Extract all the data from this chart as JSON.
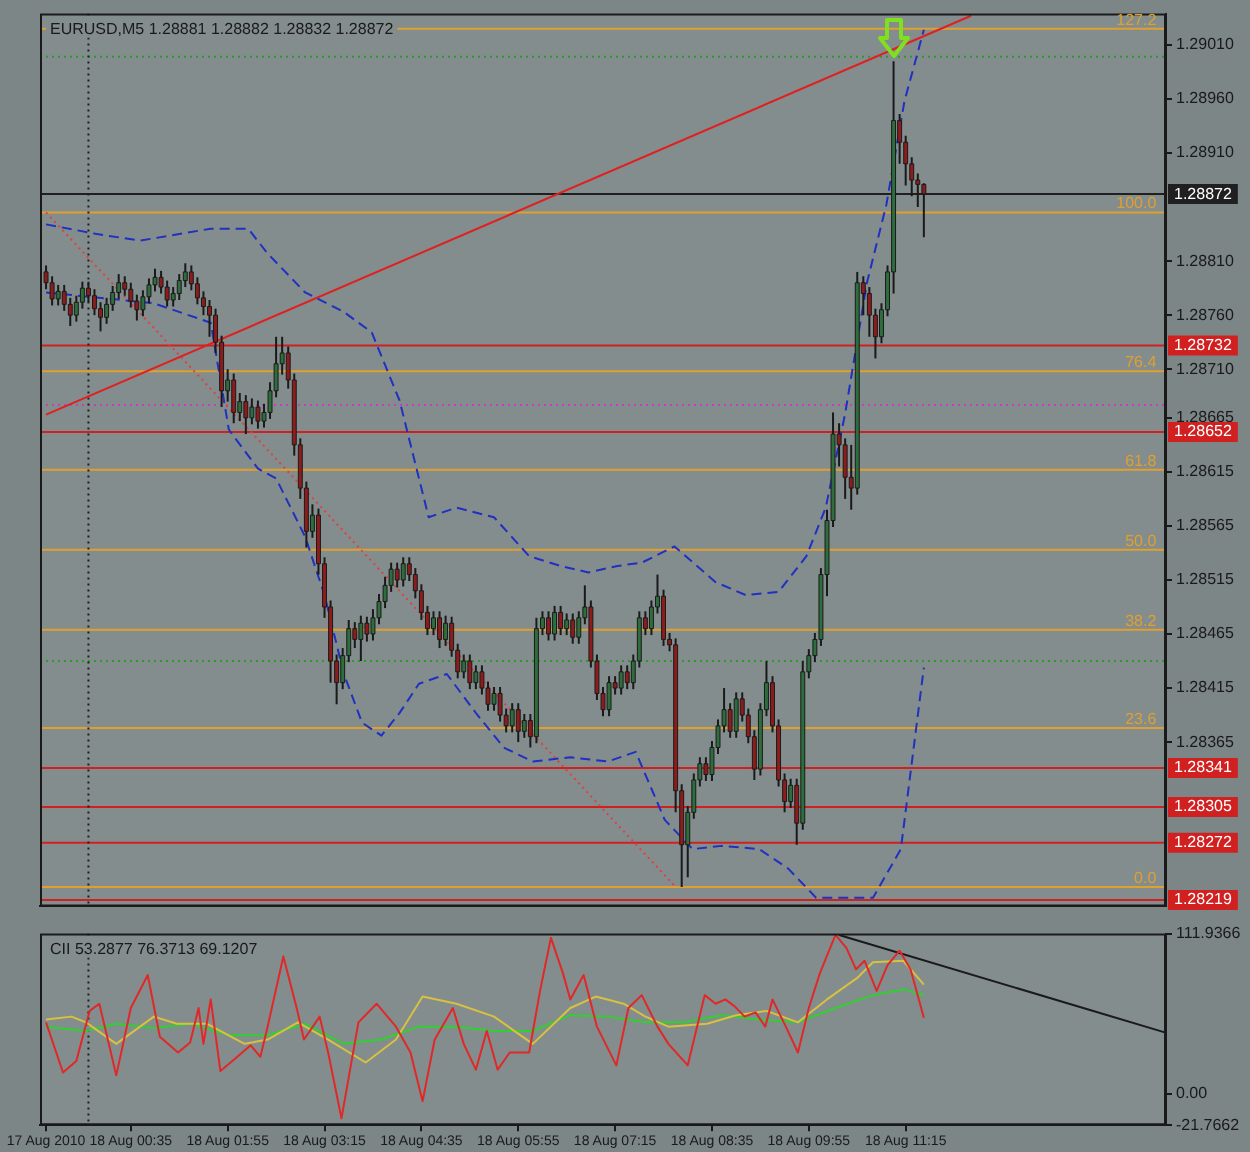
{
  "chart_data": [
    {
      "type": "candlestick",
      "title": "EURUSD,M5 1.28881 1.28882 1.28832 1.28872",
      "x": [
        "2010-08-17T23:25",
        "2010-08-17T23:30",
        "2010-08-17T23:35",
        "2010-08-17T23:40",
        "2010-08-17T23:45",
        "2010-08-17T23:50",
        "2010-08-17T23:55",
        "2010-08-18T00:00",
        "2010-08-18T00:05",
        "2010-08-18T00:10",
        "2010-08-18T00:15",
        "2010-08-18T00:20",
        "2010-08-18T00:25",
        "2010-08-18T00:30",
        "2010-08-18T00:35",
        "2010-08-18T00:40",
        "2010-08-18T00:45",
        "2010-08-18T00:50",
        "2010-08-18T00:55",
        "2010-08-18T01:00",
        "2010-08-18T01:05",
        "2010-08-18T01:10",
        "2010-08-18T01:15",
        "2010-08-18T01:20",
        "2010-08-18T01:25",
        "2010-08-18T01:30",
        "2010-08-18T01:35",
        "2010-08-18T01:40",
        "2010-08-18T01:45",
        "2010-08-18T01:50",
        "2010-08-18T01:55",
        "2010-08-18T02:00",
        "2010-08-18T02:05",
        "2010-08-18T02:10",
        "2010-08-18T02:15",
        "2010-08-18T02:20",
        "2010-08-18T02:25",
        "2010-08-18T02:30",
        "2010-08-18T02:35",
        "2010-08-18T02:40",
        "2010-08-18T02:45",
        "2010-08-18T02:50",
        "2010-08-18T02:55",
        "2010-08-18T03:00",
        "2010-08-18T03:05",
        "2010-08-18T03:10",
        "2010-08-18T03:15",
        "2010-08-18T03:20",
        "2010-08-18T03:25",
        "2010-08-18T03:30",
        "2010-08-18T03:35",
        "2010-08-18T03:40",
        "2010-08-18T03:45",
        "2010-08-18T03:50",
        "2010-08-18T03:55",
        "2010-08-18T04:00",
        "2010-08-18T04:05",
        "2010-08-18T04:10",
        "2010-08-18T04:15",
        "2010-08-18T04:20",
        "2010-08-18T04:25",
        "2010-08-18T04:30",
        "2010-08-18T04:35",
        "2010-08-18T04:40",
        "2010-08-18T04:45",
        "2010-08-18T04:50",
        "2010-08-18T04:55",
        "2010-08-18T05:00",
        "2010-08-18T05:05",
        "2010-08-18T05:10",
        "2010-08-18T05:15",
        "2010-08-18T05:20",
        "2010-08-18T05:25",
        "2010-08-18T05:30",
        "2010-08-18T05:35",
        "2010-08-18T05:40",
        "2010-08-18T05:45",
        "2010-08-18T05:50",
        "2010-08-18T05:55",
        "2010-08-18T06:00",
        "2010-08-18T06:05",
        "2010-08-18T06:10",
        "2010-08-18T06:15",
        "2010-08-18T06:20",
        "2010-08-18T06:25",
        "2010-08-18T06:30",
        "2010-08-18T06:35",
        "2010-08-18T06:40",
        "2010-08-18T06:45",
        "2010-08-18T06:50",
        "2010-08-18T06:55",
        "2010-08-18T07:00",
        "2010-08-18T07:05",
        "2010-08-18T07:10",
        "2010-08-18T07:15",
        "2010-08-18T07:20",
        "2010-08-18T07:25",
        "2010-08-18T07:30",
        "2010-08-18T07:35",
        "2010-08-18T07:40",
        "2010-08-18T07:45",
        "2010-08-18T07:50",
        "2010-08-18T07:55",
        "2010-08-18T08:00",
        "2010-08-18T08:05",
        "2010-08-18T08:10",
        "2010-08-18T08:15",
        "2010-08-18T08:20",
        "2010-08-18T08:25",
        "2010-08-18T08:30",
        "2010-08-18T08:35",
        "2010-08-18T08:40",
        "2010-08-18T08:45",
        "2010-08-18T08:50",
        "2010-08-18T08:55",
        "2010-08-18T09:00",
        "2010-08-18T09:05",
        "2010-08-18T09:10",
        "2010-08-18T09:15",
        "2010-08-18T09:20",
        "2010-08-18T09:25",
        "2010-08-18T09:30",
        "2010-08-18T09:35",
        "2010-08-18T09:40",
        "2010-08-18T09:45",
        "2010-08-18T09:50",
        "2010-08-18T09:55",
        "2010-08-18T10:00",
        "2010-08-18T10:05",
        "2010-08-18T10:10",
        "2010-08-18T10:15",
        "2010-08-18T10:20",
        "2010-08-18T10:25",
        "2010-08-18T10:30",
        "2010-08-18T10:35",
        "2010-08-18T10:40",
        "2010-08-18T10:45",
        "2010-08-18T10:50",
        "2010-08-18T10:55",
        "2010-08-18T11:00",
        "2010-08-18T11:05",
        "2010-08-18T11:10",
        "2010-08-18T11:15",
        "2010-08-18T11:20",
        "2010-08-18T11:25",
        "2010-08-18T11:30"
      ],
      "ohlc": [
        [
          1.288,
          1.28806,
          1.28784,
          1.2879
        ],
        [
          1.2879,
          1.28796,
          1.28769,
          1.28775
        ],
        [
          1.28775,
          1.28788,
          1.28769,
          1.28782
        ],
        [
          1.28782,
          1.28788,
          1.28764,
          1.2877
        ],
        [
          1.2877,
          1.28776,
          1.2875,
          1.2876
        ],
        [
          1.2876,
          1.28778,
          1.28754,
          1.28772
        ],
        [
          1.28772,
          1.28791,
          1.28766,
          1.28785
        ],
        [
          1.28785,
          1.28791,
          1.28772,
          1.28778
        ],
        [
          1.28778,
          1.28784,
          1.2876,
          1.28766
        ],
        [
          1.28766,
          1.28772,
          1.28745,
          1.28758
        ],
        [
          1.28758,
          1.28776,
          1.28752,
          1.2877
        ],
        [
          1.2877,
          1.28787,
          1.28764,
          1.28781
        ],
        [
          1.28781,
          1.28798,
          1.28775,
          1.2879
        ],
        [
          1.2879,
          1.28796,
          1.28778,
          1.28784
        ],
        [
          1.28784,
          1.2879,
          1.28767,
          1.28773
        ],
        [
          1.28773,
          1.28779,
          1.28755,
          1.28765
        ],
        [
          1.28765,
          1.28783,
          1.28759,
          1.28777
        ],
        [
          1.28777,
          1.28794,
          1.28771,
          1.28788
        ],
        [
          1.28788,
          1.28803,
          1.28782,
          1.28795
        ],
        [
          1.28795,
          1.28801,
          1.2878,
          1.28786
        ],
        [
          1.28786,
          1.28792,
          1.28768,
          1.28774
        ],
        [
          1.28774,
          1.28786,
          1.28768,
          1.2878
        ],
        [
          1.2878,
          1.28798,
          1.28774,
          1.28792
        ],
        [
          1.28792,
          1.28808,
          1.28786,
          1.288
        ],
        [
          1.288,
          1.28806,
          1.28783,
          1.28789
        ],
        [
          1.28789,
          1.28795,
          1.2877,
          1.28776
        ],
        [
          1.28776,
          1.28782,
          1.2876,
          1.28768
        ],
        [
          1.28768,
          1.28774,
          1.2874,
          1.2876
        ],
        [
          1.2876,
          1.28766,
          1.28725,
          1.28735
        ],
        [
          1.28735,
          1.28741,
          1.28675,
          1.2869
        ],
        [
          1.2869,
          1.2871,
          1.2868,
          1.287
        ],
        [
          1.287,
          1.28706,
          1.2866,
          1.2867
        ],
        [
          1.2867,
          1.28688,
          1.28662,
          1.2868
        ],
        [
          1.2868,
          1.28686,
          1.2865,
          1.28665
        ],
        [
          1.28665,
          1.28683,
          1.28659,
          1.28675
        ],
        [
          1.28675,
          1.28681,
          1.28655,
          1.28662
        ],
        [
          1.28662,
          1.28678,
          1.28656,
          1.2867
        ],
        [
          1.2867,
          1.28698,
          1.28664,
          1.2869
        ],
        [
          1.2869,
          1.2874,
          1.28684,
          1.28715
        ],
        [
          1.28715,
          1.2874,
          1.28705,
          1.28725
        ],
        [
          1.28725,
          1.28731,
          1.28692,
          1.287
        ],
        [
          1.287,
          1.28706,
          1.2863,
          1.2864
        ],
        [
          1.2864,
          1.28646,
          1.2859,
          1.286
        ],
        [
          1.286,
          1.28606,
          1.28545,
          1.2856
        ],
        [
          1.2856,
          1.28585,
          1.28554,
          1.28575
        ],
        [
          1.28575,
          1.28581,
          1.2852,
          1.2853
        ],
        [
          1.2853,
          1.28536,
          1.2848,
          1.2849
        ],
        [
          1.2849,
          1.28496,
          1.2842,
          1.2844
        ],
        [
          1.2844,
          1.28446,
          1.284,
          1.2842
        ],
        [
          1.2842,
          1.28452,
          1.28414,
          1.28445
        ],
        [
          1.28445,
          1.28478,
          1.28439,
          1.2847
        ],
        [
          1.2847,
          1.28476,
          1.28452,
          1.2846
        ],
        [
          1.2846,
          1.28482,
          1.2844,
          1.28475
        ],
        [
          1.28475,
          1.28481,
          1.28458,
          1.28465
        ],
        [
          1.28465,
          1.28488,
          1.28459,
          1.2848
        ],
        [
          1.2848,
          1.28502,
          1.28474,
          1.28495
        ],
        [
          1.28495,
          1.28518,
          1.28489,
          1.2851
        ],
        [
          1.2851,
          1.28531,
          1.28504,
          1.28525
        ],
        [
          1.28525,
          1.28531,
          1.28508,
          1.28515
        ],
        [
          1.28515,
          1.28536,
          1.28509,
          1.2853
        ],
        [
          1.2853,
          1.28536,
          1.28514,
          1.2852
        ],
        [
          1.2852,
          1.28526,
          1.28498,
          1.28505
        ],
        [
          1.28505,
          1.28511,
          1.28478,
          1.28485
        ],
        [
          1.28485,
          1.28491,
          1.28464,
          1.2847
        ],
        [
          1.2847,
          1.28486,
          1.28464,
          1.2848
        ],
        [
          1.2848,
          1.28486,
          1.28452,
          1.2846
        ],
        [
          1.2846,
          1.28482,
          1.28454,
          1.28475
        ],
        [
          1.28475,
          1.28481,
          1.28444,
          1.2845
        ],
        [
          1.2845,
          1.28456,
          1.28424,
          1.2843
        ],
        [
          1.2843,
          1.28446,
          1.28424,
          1.2844
        ],
        [
          1.2844,
          1.28446,
          1.28414,
          1.2842
        ],
        [
          1.2842,
          1.28436,
          1.28414,
          1.2843
        ],
        [
          1.2843,
          1.28436,
          1.28409,
          1.28415
        ],
        [
          1.28415,
          1.28421,
          1.28394,
          1.284
        ],
        [
          1.284,
          1.28416,
          1.28394,
          1.2841
        ],
        [
          1.2841,
          1.28416,
          1.28384,
          1.2839
        ],
        [
          1.2839,
          1.28396,
          1.28374,
          1.2838
        ],
        [
          1.2838,
          1.28401,
          1.28374,
          1.28395
        ],
        [
          1.28395,
          1.28401,
          1.28365,
          1.28375
        ],
        [
          1.28375,
          1.28391,
          1.28369,
          1.28385
        ],
        [
          1.28385,
          1.28391,
          1.2836,
          1.2837
        ],
        [
          1.2837,
          1.2848,
          1.28364,
          1.2847
        ],
        [
          1.2847,
          1.28486,
          1.28464,
          1.2848
        ],
        [
          1.2848,
          1.28486,
          1.28459,
          1.28465
        ],
        [
          1.28465,
          1.28491,
          1.28459,
          1.28485
        ],
        [
          1.28485,
          1.28491,
          1.28464,
          1.2847
        ],
        [
          1.2847,
          1.28484,
          1.28464,
          1.28478
        ],
        [
          1.28478,
          1.28484,
          1.28456,
          1.28462
        ],
        [
          1.28462,
          1.28486,
          1.28456,
          1.2848
        ],
        [
          1.2848,
          1.2851,
          1.28474,
          1.2849
        ],
        [
          1.2849,
          1.28496,
          1.28434,
          1.2844
        ],
        [
          1.2844,
          1.28446,
          1.28404,
          1.2841
        ],
        [
          1.2841,
          1.28416,
          1.28389,
          1.28395
        ],
        [
          1.28395,
          1.28426,
          1.28389,
          1.2842
        ],
        [
          1.2842,
          1.28426,
          1.28409,
          1.28415
        ],
        [
          1.28415,
          1.28436,
          1.28409,
          1.2843
        ],
        [
          1.2843,
          1.28436,
          1.28414,
          1.2842
        ],
        [
          1.2842,
          1.28446,
          1.28414,
          1.2844
        ],
        [
          1.2844,
          1.28486,
          1.28434,
          1.2848
        ],
        [
          1.2848,
          1.28486,
          1.28464,
          1.2847
        ],
        [
          1.2847,
          1.28496,
          1.28464,
          1.2849
        ],
        [
          1.2849,
          1.2852,
          1.28484,
          1.285
        ],
        [
          1.285,
          1.28506,
          1.28454,
          1.2846
        ],
        [
          1.2846,
          1.28466,
          1.28449,
          1.28455
        ],
        [
          1.28455,
          1.28461,
          1.283,
          1.2832
        ],
        [
          1.2832,
          1.28326,
          1.28231,
          1.2827
        ],
        [
          1.2827,
          1.28306,
          1.2824,
          1.283
        ],
        [
          1.283,
          1.28336,
          1.28294,
          1.2833
        ],
        [
          1.2833,
          1.28351,
          1.28324,
          1.28345
        ],
        [
          1.28345,
          1.28351,
          1.28329,
          1.28335
        ],
        [
          1.28335,
          1.28366,
          1.28329,
          1.2836
        ],
        [
          1.2836,
          1.28386,
          1.28354,
          1.2838
        ],
        [
          1.2838,
          1.28415,
          1.28374,
          1.28395
        ],
        [
          1.28395,
          1.28401,
          1.28369,
          1.28375
        ],
        [
          1.28375,
          1.28411,
          1.28369,
          1.28405
        ],
        [
          1.28405,
          1.28411,
          1.28384,
          1.2839
        ],
        [
          1.2839,
          1.28396,
          1.28364,
          1.2837
        ],
        [
          1.2837,
          1.28376,
          1.2833,
          1.2834
        ],
        [
          1.2834,
          1.28401,
          1.28334,
          1.28395
        ],
        [
          1.28395,
          1.2844,
          1.28389,
          1.2842
        ],
        [
          1.2842,
          1.28426,
          1.28374,
          1.2838
        ],
        [
          1.2838,
          1.28386,
          1.28324,
          1.2833
        ],
        [
          1.2833,
          1.28336,
          1.283,
          1.2831
        ],
        [
          1.2831,
          1.28331,
          1.28304,
          1.28325
        ],
        [
          1.28325,
          1.28331,
          1.2827,
          1.2829
        ],
        [
          1.2829,
          1.2844,
          1.28284,
          1.2843
        ],
        [
          1.2843,
          1.28451,
          1.28424,
          1.28445
        ],
        [
          1.28445,
          1.28466,
          1.28439,
          1.2846
        ],
        [
          1.2846,
          1.28526,
          1.28454,
          1.2852
        ],
        [
          1.2852,
          1.2858,
          1.285,
          1.2857
        ],
        [
          1.2857,
          1.2867,
          1.28564,
          1.2865
        ],
        [
          1.2865,
          1.2866,
          1.2862,
          1.2864
        ],
        [
          1.2864,
          1.28646,
          1.2859,
          1.2861
        ],
        [
          1.2861,
          1.2864,
          1.2858,
          1.286
        ],
        [
          1.286,
          1.288,
          1.28594,
          1.2879
        ],
        [
          1.2879,
          1.28796,
          1.2876,
          1.2878
        ],
        [
          1.2878,
          1.28786,
          1.2874,
          1.2876
        ],
        [
          1.2876,
          1.28766,
          1.2872,
          1.2874
        ],
        [
          1.2874,
          1.28771,
          1.28734,
          1.28765
        ],
        [
          1.28765,
          1.28806,
          1.28759,
          1.288
        ],
        [
          1.288,
          1.28995,
          1.2878,
          1.2894
        ],
        [
          1.2894,
          1.28946,
          1.289,
          1.2892
        ],
        [
          1.2892,
          1.28926,
          1.2888,
          1.289
        ],
        [
          1.289,
          1.28906,
          1.2887,
          1.28885
        ],
        [
          1.28885,
          1.28891,
          1.2886,
          1.28881
        ],
        [
          1.28881,
          1.28882,
          1.28832,
          1.28872
        ]
      ],
      "series": [
        {
          "type": "line",
          "color": "#2030c0",
          "line_style": "dashed",
          "x": [
            "2010-08-17T23:25",
            "2010-08-18T00:07",
            "2010-08-18T00:43",
            "2010-08-18T01:41",
            "2010-08-18T02:12",
            "2010-08-18T02:28",
            "2010-08-18T02:59",
            "2010-08-18T03:31",
            "2010-08-18T03:54",
            "2010-08-18T04:17",
            "2010-08-18T04:41",
            "2010-08-18T05:04",
            "2010-08-18T05:35",
            "2010-08-18T06:04",
            "2010-08-18T06:30",
            "2010-08-18T06:53",
            "2010-08-18T07:17",
            "2010-08-18T07:37",
            "2010-08-18T08:04",
            "2010-08-18T08:38",
            "2010-08-18T09:03",
            "2010-08-18T09:30",
            "2010-08-18T09:53",
            "2010-08-18T10:09",
            "2010-08-18T10:25",
            "2010-08-18T10:43",
            "2010-08-18T10:59",
            "2010-08-18T11:14",
            "2010-08-18T11:30"
          ],
          "values": [
            1.28844,
            1.28835,
            1.28829,
            1.2884,
            1.2884,
            1.28817,
            1.28781,
            1.28763,
            1.28744,
            1.28681,
            1.28573,
            1.28582,
            1.28573,
            1.28537,
            1.28528,
            1.28522,
            1.28528,
            1.28531,
            1.28546,
            1.28513,
            1.28501,
            1.28504,
            1.28537,
            1.28582,
            1.28669,
            1.2879,
            1.28862,
            1.28958,
            1.29024
          ]
        },
        {
          "type": "line",
          "color": "#2030c0",
          "line_style": "dashed",
          "x": [
            "2010-08-17T23:25",
            "2010-08-18T00:54",
            "2010-08-18T01:41",
            "2010-08-18T01:56",
            "2010-08-18T02:20",
            "2010-08-18T02:35",
            "2010-08-18T02:59",
            "2010-08-18T03:15",
            "2010-08-18T03:31",
            "2010-08-18T03:46",
            "2010-08-18T04:02",
            "2010-08-18T04:17",
            "2010-08-18T04:33",
            "2010-08-18T04:56",
            "2010-08-18T05:20",
            "2010-08-18T05:43",
            "2010-08-18T06:07",
            "2010-08-18T06:38",
            "2010-08-18T07:09",
            "2010-08-18T07:32",
            "2010-08-18T07:56",
            "2010-08-18T08:19",
            "2010-08-18T08:43",
            "2010-08-18T09:14",
            "2010-08-18T09:38",
            "2010-08-18T10:01",
            "2010-08-18T10:17",
            "2010-08-18T10:48",
            "2010-08-18T11:11",
            "2010-08-18T11:30"
          ],
          "values": [
            1.28781,
            1.28771,
            1.28753,
            1.28654,
            1.28618,
            1.28609,
            1.28555,
            1.28501,
            1.28428,
            1.28383,
            1.28371,
            1.28392,
            1.28419,
            1.28428,
            1.28392,
            1.2836,
            1.28347,
            1.28351,
            1.28347,
            1.28356,
            1.28293,
            1.28266,
            1.28269,
            1.28266,
            1.28248,
            1.28221,
            1.28221,
            1.28221,
            1.28266,
            1.28434
          ]
        },
        {
          "type": "line",
          "color": "#e02020",
          "line_style": "solid",
          "x": [
            "2010-08-17T23:25",
            "2010-08-18T12:09"
          ],
          "values": [
            1.28668,
            1.29037
          ]
        },
        {
          "type": "line",
          "color": "#e04040",
          "line_style": "dotted",
          "x": [
            "2010-08-17T23:25",
            "2010-08-18T08:05"
          ],
          "values": [
            1.28855,
            1.28231
          ]
        }
      ],
      "ylim": [
        1.28213,
        1.29039
      ],
      "yticks": [
        {
          "value": 1.2901,
          "label": "1.29010"
        },
        {
          "value": 1.2896,
          "label": "1.28960"
        },
        {
          "value": 1.2891,
          "label": "1.28910"
        },
        {
          "value": 1.2881,
          "label": "1.28810"
        },
        {
          "value": 1.2876,
          "label": "1.28760"
        },
        {
          "value": 1.2871,
          "label": "1.28710"
        },
        {
          "value": 1.28665,
          "label": "1.28665"
        },
        {
          "value": 1.28615,
          "label": "1.28615"
        },
        {
          "value": 1.28565,
          "label": "1.28565"
        },
        {
          "value": 1.28515,
          "label": "1.28515"
        },
        {
          "value": 1.28465,
          "label": "1.28465"
        },
        {
          "value": 1.28415,
          "label": "1.28415"
        },
        {
          "value": 1.28365,
          "label": "1.28365"
        }
      ],
      "xlim": [
        "2010-08-17T23:20",
        "2010-08-18T14:50"
      ],
      "tick_labels": "y",
      "ref_lines": [
        {
          "axis": "y",
          "value": 1.29025,
          "color": "#e0a030"
        },
        {
          "axis": "y",
          "value": 1.28855,
          "color": "#e0a030"
        },
        {
          "axis": "y",
          "value": 1.28708,
          "color": "#e0a030"
        },
        {
          "axis": "y",
          "value": 1.28617,
          "color": "#e0a030"
        },
        {
          "axis": "y",
          "value": 1.28543,
          "color": "#e0a030"
        },
        {
          "axis": "y",
          "value": 1.28469,
          "color": "#e0a030"
        },
        {
          "axis": "y",
          "value": 1.28378,
          "color": "#e0a030"
        },
        {
          "axis": "y",
          "value": 1.28231,
          "color": "#e0a030"
        },
        {
          "axis": "y",
          "value": 1.28999,
          "color": "#2a9a2a",
          "line_style": "dotted"
        },
        {
          "axis": "y",
          "value": 1.2844,
          "color": "#2a9a2a",
          "line_style": "dotted"
        },
        {
          "axis": "y",
          "value": 1.28677,
          "color": "#c040c0",
          "line_style": "dotted"
        },
        {
          "axis": "y",
          "value": 1.28872,
          "label": "1.28872",
          "color": "#202020"
        },
        {
          "axis": "y",
          "value": 1.28732,
          "label": "1.28732",
          "color": "#d02020"
        },
        {
          "axis": "y",
          "value": 1.28652,
          "label": "1.28652",
          "color": "#d02020"
        },
        {
          "axis": "y",
          "value": 1.28341,
          "label": "1.28341",
          "color": "#d02020"
        },
        {
          "axis": "y",
          "value": 1.28305,
          "label": "1.28305",
          "color": "#d02020"
        },
        {
          "axis": "y",
          "value": 1.28272,
          "label": "1.28272",
          "color": "#d02020"
        },
        {
          "axis": "y",
          "value": 1.28219,
          "label": "1.28219",
          "color": "#d02020"
        },
        {
          "axis": "x",
          "value": "2010-08-18T00:00",
          "color": "#202020",
          "line_style": "dotted"
        }
      ],
      "annotations": [
        {
          "text": "127.2",
          "x": "2010-08-18T14:42",
          "y": 1.29025
        },
        {
          "text": "100.0",
          "x": "2010-08-18T14:42",
          "y": 1.28855
        },
        {
          "text": "76.4",
          "x": "2010-08-18T14:42",
          "y": 1.28708
        },
        {
          "text": "61.8",
          "x": "2010-08-18T14:42",
          "y": 1.28617
        },
        {
          "text": "50.0",
          "x": "2010-08-18T14:42",
          "y": 1.28543
        },
        {
          "text": "38.2",
          "x": "2010-08-18T14:42",
          "y": 1.28469
        },
        {
          "text": "23.6",
          "x": "2010-08-18T14:42",
          "y": 1.28378
        },
        {
          "text": "0.0",
          "x": "2010-08-18T14:42",
          "y": 1.28231
        }
      ]
    },
    {
      "type": "line",
      "title": "CII 53.2877 76.3713 69.1207",
      "series": [
        {
          "color": "#e02828",
          "x": [
            "2010-08-17T23:25",
            "2010-08-17T23:39",
            "2010-08-17T23:50",
            "2010-08-18T00:01",
            "2010-08-18T00:09",
            "2010-08-18T00:23",
            "2010-08-18T00:35",
            "2010-08-18T00:49",
            "2010-08-18T00:59",
            "2010-08-18T01:14",
            "2010-08-18T01:24",
            "2010-08-18T01:31",
            "2010-08-18T01:35",
            "2010-08-18T01:41",
            "2010-08-18T01:49",
            "2010-08-18T02:03",
            "2010-08-18T02:14",
            "2010-08-18T02:22",
            "2010-08-18T02:28",
            "2010-08-18T02:41",
            "2010-08-18T02:52",
            "2010-08-18T02:58",
            "2010-08-18T03:11",
            "2010-08-18T03:18",
            "2010-08-18T03:29",
            "2010-08-18T03:43",
            "2010-08-18T03:58",
            "2010-08-18T04:14",
            "2010-08-18T04:26",
            "2010-08-18T04:36",
            "2010-08-18T04:46",
            "2010-08-18T05:01",
            "2010-08-18T05:10",
            "2010-08-18T05:20",
            "2010-08-18T05:29",
            "2010-08-18T05:38",
            "2010-08-18T05:48",
            "2010-08-18T06:04",
            "2010-08-18T06:13",
            "2010-08-18T06:22",
            "2010-08-18T06:32",
            "2010-08-18T06:38",
            "2010-08-18T06:49",
            "2010-08-18T07:00",
            "2010-08-18T07:16",
            "2010-08-18T07:26",
            "2010-08-18T07:37",
            "2010-08-18T07:50",
            "2010-08-18T07:59",
            "2010-08-18T08:15",
            "2010-08-18T08:29",
            "2010-08-18T08:38",
            "2010-08-18T08:46",
            "2010-08-18T08:54",
            "2010-08-18T09:02",
            "2010-08-18T09:11",
            "2010-08-18T09:19",
            "2010-08-18T09:25",
            "2010-08-18T09:36",
            "2010-08-18T09:46",
            "2010-08-18T09:55",
            "2010-08-18T10:04",
            "2010-08-18T10:17",
            "2010-08-18T10:26",
            "2010-08-18T10:34",
            "2010-08-18T10:41",
            "2010-08-18T10:51",
            "2010-08-18T11:00",
            "2010-08-18T11:10",
            "2010-08-18T11:19",
            "2010-08-18T11:30"
          ],
          "values": [
            50,
            15,
            23,
            58,
            63,
            13,
            60,
            83,
            40,
            29,
            36,
            60,
            35,
            66,
            16,
            26,
            34,
            26,
            47,
            96,
            60,
            38,
            54,
            29,
            -17,
            50,
            63,
            47,
            29,
            -5,
            38,
            60,
            35,
            17,
            44,
            17,
            29,
            29,
            72,
            109,
            84,
            66,
            83,
            47,
            20,
            60,
            69,
            47,
            35,
            20,
            69,
            63,
            66,
            61,
            54,
            57,
            47,
            66,
            47,
            29,
            60,
            84,
            111,
            102,
            87,
            93,
            72,
            90,
            100,
            87,
            53.2877
          ]
        },
        {
          "color": "#d8c040",
          "x": [
            "2010-08-17T23:25",
            "2010-08-17T23:46",
            "2010-08-17T23:58",
            "2010-08-18T00:23",
            "2010-08-18T00:54",
            "2010-08-18T01:13",
            "2010-08-18T01:38",
            "2010-08-18T02:09",
            "2010-08-18T02:28",
            "2010-08-18T02:53",
            "2010-08-18T03:18",
            "2010-08-18T03:49",
            "2010-08-18T04:14",
            "2010-08-18T04:36",
            "2010-08-18T05:04",
            "2010-08-18T05:35",
            "2010-08-18T06:07",
            "2010-08-18T06:38",
            "2010-08-18T06:59",
            "2010-08-18T07:22",
            "2010-08-18T07:40",
            "2010-08-18T07:59",
            "2010-08-18T08:31",
            "2010-08-18T08:55",
            "2010-08-18T09:20",
            "2010-08-18T09:46",
            "2010-08-18T10:10",
            "2010-08-18T10:35",
            "2010-08-18T10:48",
            "2010-08-18T11:13",
            "2010-08-18T11:30"
          ],
          "values": [
            52,
            54,
            50,
            35,
            54,
            49,
            49,
            35,
            38,
            50,
            38,
            22,
            38,
            68,
            63,
            54,
            35,
            60,
            68,
            63,
            54,
            47,
            49,
            55,
            58,
            50,
            66,
            81,
            92,
            93,
            76.3713
          ]
        },
        {
          "color": "#30d030",
          "x": [
            "2010-08-17T23:25",
            "2010-08-17T23:58",
            "2010-08-18T00:23",
            "2010-08-18T00:54",
            "2010-08-18T01:25",
            "2010-08-18T01:56",
            "2010-08-18T02:28",
            "2010-08-18T02:59",
            "2010-08-18T03:31",
            "2010-08-18T04:02",
            "2010-08-18T04:33",
            "2010-08-18T05:04",
            "2010-08-18T05:35",
            "2010-08-18T06:07",
            "2010-08-18T06:38",
            "2010-08-18T07:09",
            "2010-08-18T07:40",
            "2010-08-18T08:11",
            "2010-08-18T08:43",
            "2010-08-18T09:14",
            "2010-08-18T09:46",
            "2010-08-18T10:17",
            "2010-08-18T10:48",
            "2010-08-18T11:13",
            "2010-08-18T11:30"
          ],
          "values": [
            47,
            44,
            49,
            46,
            49,
            41,
            41,
            49,
            35,
            38,
            47,
            47,
            44,
            44,
            55,
            54,
            50,
            50,
            55,
            52,
            50,
            60,
            69,
            73,
            69.1207
          ]
        },
        {
          "color": "#1a1a1a",
          "x": [
            "2010-08-18T10:20",
            "2010-08-18T14:49"
          ],
          "values": [
            111,
            43
          ]
        }
      ],
      "ylim": [
        -21.7662,
        111.9366
      ],
      "yticks": [
        111.9366,
        {
          "value": 0,
          "label": "0.00"
        },
        -21.7662
      ],
      "xlim": [
        "2010-08-17T23:20",
        "2010-08-18T14:50"
      ],
      "xticks": [
        {
          "value": "2010-08-17T23:25",
          "label": "17 Aug 2010"
        },
        {
          "value": "2010-08-18T00:35",
          "label": "18 Aug 00:35"
        },
        {
          "value": "2010-08-18T01:55",
          "label": "18 Aug 01:55"
        },
        {
          "value": "2010-08-18T03:15",
          "label": "18 Aug 03:15"
        },
        {
          "value": "2010-08-18T04:35",
          "label": "18 Aug 04:35"
        },
        {
          "value": "2010-08-18T05:55",
          "label": "18 Aug 05:55"
        },
        {
          "value": "2010-08-18T07:15",
          "label": "18 Aug 07:15"
        },
        {
          "value": "2010-08-18T08:35",
          "label": "18 Aug 08:35"
        },
        {
          "value": "2010-08-18T09:55",
          "label": "18 Aug 09:55"
        },
        {
          "value": "2010-08-18T11:15",
          "label": "18 Aug 11:15"
        }
      ],
      "ref_lines": [
        {
          "axis": "x",
          "value": "2010-08-18T00:00",
          "color": "#202020",
          "line_style": "dotted"
        }
      ]
    }
  ]
}
